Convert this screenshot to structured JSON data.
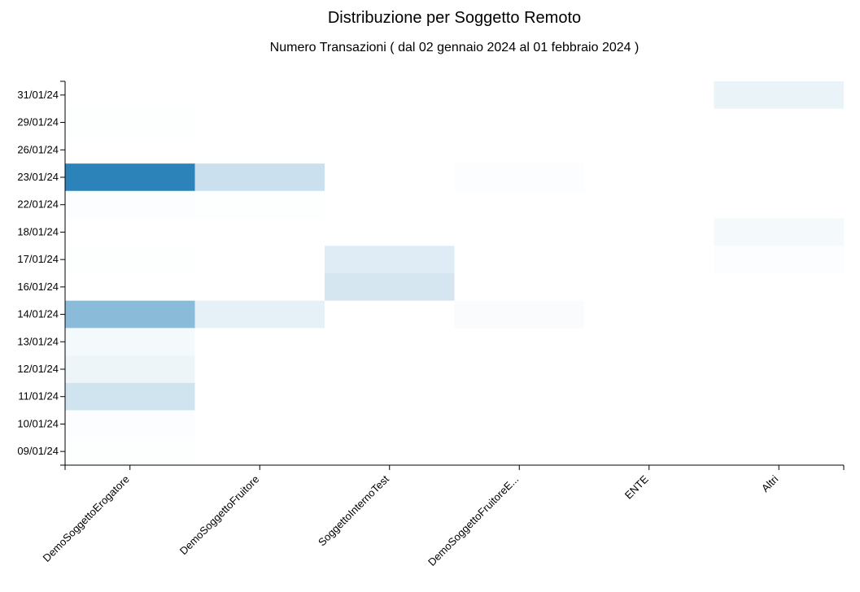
{
  "chart_data": {
    "type": "heatmap",
    "title": "Distribuzione per Soggetto Remoto",
    "subtitle": "Numero Transazioni ( dal 02 gennaio 2024 al 01 febbraio 2024 )",
    "x_categories": [
      "DemoSoggettoErogatore",
      "DemoSoggettoFruitore",
      "SoggettoInternoTest",
      "DemoSoggettoFruitoreE...",
      "ENTE",
      "Altri"
    ],
    "y_categories": [
      "31/01/24",
      "29/01/24",
      "26/01/24",
      "23/01/24",
      "22/01/24",
      "18/01/24",
      "17/01/24",
      "16/01/24",
      "14/01/24",
      "13/01/24",
      "12/01/24",
      "11/01/24",
      "10/01/24",
      "09/01/24"
    ],
    "values": [
      [
        0,
        0,
        0,
        0,
        0,
        10
      ],
      [
        1,
        0,
        0,
        0,
        0,
        0
      ],
      [
        0,
        0,
        0,
        0,
        0,
        0
      ],
      [
        100,
        25,
        0,
        2,
        0,
        0
      ],
      [
        2,
        1,
        0,
        0,
        0,
        0
      ],
      [
        0,
        0,
        0,
        0,
        0,
        5
      ],
      [
        1,
        0,
        15,
        0,
        0,
        2
      ],
      [
        0,
        0,
        20,
        0,
        0,
        0
      ],
      [
        55,
        12,
        0,
        3,
        0,
        0
      ],
      [
        5,
        0,
        0,
        0,
        0,
        0
      ],
      [
        8,
        0,
        0,
        0,
        0,
        0
      ],
      [
        22,
        0,
        0,
        0,
        0,
        0
      ],
      [
        2,
        0,
        0,
        0,
        0,
        0
      ],
      [
        1,
        0,
        0,
        0,
        0,
        0
      ]
    ],
    "color_scale": [
      "#ffffff",
      "#2b83ba"
    ],
    "legend": "none",
    "grid": false
  }
}
